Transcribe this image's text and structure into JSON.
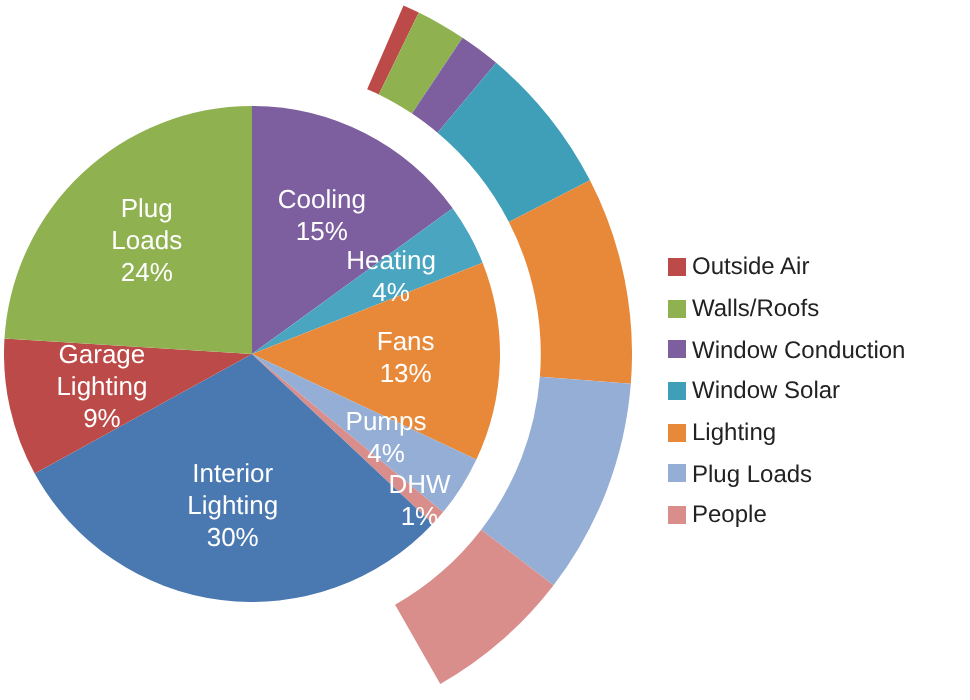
{
  "chart_data": [
    {
      "type": "pie",
      "categories": [
        "Cooling",
        "Heating",
        "Fans",
        "Pumps",
        "DHW",
        "Interior Lighting",
        "Garage Lighting",
        "Plug Loads"
      ],
      "values": [
        15,
        4,
        13,
        4,
        1,
        30,
        9,
        24
      ],
      "value_labels": [
        "15%",
        "4%",
        "13%",
        "4%",
        "1%",
        "30%",
        "9%",
        "24%"
      ],
      "colors": [
        "#7d5fa0",
        "#4aa6c0",
        "#e8893a",
        "#94aed6",
        "#d98e8c",
        "#4a78b0",
        "#bb4a48",
        "#8fb14f"
      ]
    },
    {
      "type": "donut",
      "categories": [
        "Outside Air",
        "Walls/Roofs",
        "Window Conduction",
        "Window Solar",
        "Lighting",
        "Plug Loads",
        "People"
      ],
      "values": [
        2,
        6,
        5,
        18,
        25,
        26,
        18
      ],
      "colors": [
        "#bb4a48",
        "#8fb14f",
        "#7d5fa0",
        "#3f9fb8",
        "#e8893a",
        "#94aed6",
        "#d98e8c"
      ],
      "legend": "right"
    }
  ]
}
